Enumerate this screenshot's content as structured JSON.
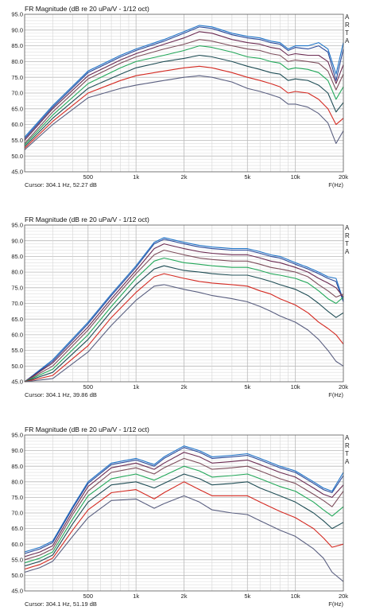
{
  "chart_data": [
    {
      "type": "line",
      "title": "FR Magnitude (dB re 20 uPa/V - 1/12 oct)",
      "brand": "ARTA",
      "xlabel": "F(Hz)",
      "cursor": "Cursor: 304.1 Hz, 52.27 dB",
      "x_scale": "log",
      "xlim": [
        200,
        20000
      ],
      "ylim": [
        45,
        95
      ],
      "x_ticks": [
        "500",
        "1k",
        "2k",
        "5k",
        "10k",
        "20k"
      ],
      "y_ticks": [
        "45.0",
        "50.0",
        "55.0",
        "60.0",
        "65.0",
        "70.0",
        "75.0",
        "80.0",
        "85.0",
        "90.0",
        "95.0"
      ],
      "grid": true,
      "x": [
        200,
        300,
        500,
        800,
        1000,
        1500,
        2000,
        2500,
        3000,
        4000,
        5000,
        6000,
        7000,
        8000,
        9000,
        10000,
        12000,
        14000,
        16000,
        18000,
        20000
      ],
      "series": [
        {
          "color": "#1e73c8",
          "values": [
            56,
            66,
            77,
            82,
            84,
            87,
            89.5,
            91.5,
            91,
            89,
            88,
            87.5,
            86.5,
            86,
            84,
            85,
            85,
            86,
            84,
            76,
            86
          ]
        },
        {
          "color": "#2b4a9a",
          "values": [
            55.5,
            65.5,
            76.5,
            81.5,
            83.5,
            86.5,
            89,
            91,
            90.5,
            88.5,
            87.5,
            87,
            86,
            85.5,
            83.5,
            84.5,
            84,
            85,
            83,
            74,
            84
          ]
        },
        {
          "color": "#6b2b52",
          "values": [
            55,
            65,
            75.5,
            80.5,
            82.5,
            85.5,
            87.5,
            89.5,
            89,
            87,
            86,
            85.5,
            84.5,
            84,
            82,
            82.5,
            82,
            82,
            80,
            73,
            79
          ]
        },
        {
          "color": "#7d4e5c",
          "values": [
            54,
            64,
            74.5,
            79.5,
            81.5,
            84,
            85.5,
            87,
            86.5,
            85,
            84,
            83.5,
            82.5,
            82,
            80,
            80.5,
            80,
            79.5,
            77,
            71,
            76
          ]
        },
        {
          "color": "#23a85a",
          "values": [
            53.5,
            63,
            73,
            78,
            80,
            82,
            83.5,
            85,
            84.5,
            83,
            81.5,
            81,
            80,
            79.5,
            77.5,
            78,
            77.5,
            76.5,
            74,
            68,
            72
          ]
        },
        {
          "color": "#1f4d55",
          "values": [
            53,
            62,
            71.5,
            76,
            78,
            80,
            81,
            82,
            81.5,
            80,
            78.5,
            77.5,
            76.5,
            76,
            74,
            74.5,
            74,
            72.5,
            70,
            64,
            67
          ]
        },
        {
          "color": "#d42a22",
          "values": [
            52.5,
            61,
            70,
            74,
            75.5,
            77,
            78,
            78.5,
            78,
            76.5,
            75,
            74,
            73,
            72,
            70,
            70.5,
            70,
            68,
            65,
            60,
            62
          ]
        },
        {
          "color": "#5a5f80",
          "values": [
            52,
            60,
            68.5,
            71.5,
            72.5,
            74,
            75,
            75.5,
            75,
            73.5,
            71.5,
            70.5,
            69.5,
            68.5,
            66.5,
            66.5,
            65.5,
            63.5,
            60.5,
            54,
            58
          ]
        }
      ]
    },
    {
      "type": "line",
      "title": "FR Magnitude (dB re 20 uPa/V - 1/12 oct)",
      "brand": "ARTA",
      "xlabel": "F(Hz)",
      "cursor": "Cursor: 304.1 Hz, 39.86 dB",
      "x_scale": "log",
      "xlim": [
        200,
        20000
      ],
      "ylim": [
        45,
        95
      ],
      "x_ticks": [
        "500",
        "1k",
        "2k",
        "5k",
        "10k",
        "20k"
      ],
      "y_ticks": [
        "45.0",
        "50.0",
        "55.0",
        "60.0",
        "65.0",
        "70.0",
        "75.0",
        "80.0",
        "85.0",
        "90.0",
        "95.0"
      ],
      "grid": true,
      "x": [
        200,
        300,
        500,
        700,
        1000,
        1300,
        1500,
        2000,
        2500,
        3000,
        4000,
        5000,
        6000,
        7000,
        8000,
        10000,
        12000,
        14000,
        16000,
        18000,
        20000
      ],
      "series": [
        {
          "color": "#1e73c8",
          "values": [
            45,
            52,
            64,
            73,
            82,
            89.5,
            91,
            89.5,
            88.5,
            88,
            87.5,
            87.5,
            86.5,
            85.5,
            85,
            83,
            81.5,
            80,
            78.5,
            78,
            71
          ]
        },
        {
          "color": "#2b4a9a",
          "values": [
            45,
            51.5,
            63.5,
            72.5,
            81.5,
            89,
            90.5,
            89,
            88,
            87.5,
            87,
            87,
            86,
            85,
            84.5,
            82.5,
            81,
            79.5,
            78,
            77,
            70.5
          ]
        },
        {
          "color": "#6b2b52",
          "values": [
            45,
            51,
            62.5,
            71.5,
            80.5,
            87.5,
            89,
            87.5,
            86.5,
            86,
            85.5,
            85.5,
            84.5,
            83.5,
            83,
            81.5,
            80,
            78,
            76.5,
            75,
            72
          ]
        },
        {
          "color": "#7d4e5c",
          "values": [
            45,
            50,
            61.5,
            70.5,
            79.5,
            85.5,
            87,
            85.5,
            84.5,
            84,
            83.5,
            83.5,
            82.5,
            81.5,
            81,
            80,
            78.5,
            76,
            74,
            72,
            73
          ]
        },
        {
          "color": "#23a85a",
          "values": [
            45,
            49,
            60,
            69,
            78,
            83.5,
            84.5,
            83,
            82.5,
            82,
            81.5,
            81.5,
            80.5,
            79.5,
            79,
            78,
            76.5,
            74,
            71.5,
            70,
            72
          ]
        },
        {
          "color": "#1f4d55",
          "values": [
            45,
            48,
            58.5,
            67.5,
            76,
            81,
            82,
            80.5,
            80,
            79.5,
            79,
            79,
            78,
            77,
            76,
            74.5,
            72.5,
            70,
            67.5,
            65.5,
            67
          ]
        },
        {
          "color": "#d42a22",
          "values": [
            45,
            47,
            56.5,
            65.5,
            73.5,
            78.5,
            79.5,
            78,
            77,
            76.5,
            76,
            75.5,
            74,
            73,
            71.5,
            69.5,
            67,
            64,
            62,
            60,
            57
          ]
        },
        {
          "color": "#5a5f80",
          "values": [
            45,
            46,
            54.5,
            63,
            71,
            75.5,
            76,
            74.5,
            73.5,
            72.5,
            71.5,
            70.5,
            69,
            67.5,
            66,
            64,
            61.5,
            58.5,
            55,
            51.5,
            50
          ]
        }
      ]
    },
    {
      "type": "line",
      "title": "FR Magnitude (dB re 20 uPa/V - 1/12 oct)",
      "brand": "ARTA",
      "xlabel": "F(Hz)",
      "cursor": "Cursor: 304.1 Hz, 51.19 dB",
      "x_scale": "log",
      "xlim": [
        200,
        20000
      ],
      "ylim": [
        45,
        95
      ],
      "x_ticks": [
        "500",
        "1k",
        "2k",
        "5k",
        "10k",
        "20k"
      ],
      "y_ticks": [
        "45.0",
        "50.0",
        "55.0",
        "60.0",
        "65.0",
        "70.0",
        "75.0",
        "80.0",
        "85.0",
        "90.0",
        "95.0"
      ],
      "grid": true,
      "x": [
        200,
        250,
        300,
        400,
        500,
        700,
        1000,
        1300,
        1500,
        2000,
        2500,
        3000,
        4000,
        5000,
        6000,
        8000,
        10000,
        13000,
        15000,
        17000,
        20000
      ],
      "series": [
        {
          "color": "#1e73c8",
          "values": [
            57.5,
            59,
            61,
            72,
            80,
            86,
            87.5,
            85.5,
            88,
            91.5,
            90,
            88,
            88.5,
            89,
            87.5,
            85,
            83.5,
            80,
            78,
            77,
            83
          ]
        },
        {
          "color": "#2b4a9a",
          "values": [
            57,
            58.5,
            60.5,
            71.5,
            79.5,
            85.5,
            87,
            85,
            87.5,
            91,
            89.5,
            87.5,
            88,
            88.5,
            87,
            84.5,
            83,
            79.5,
            77.5,
            76.5,
            82
          ]
        },
        {
          "color": "#6b2b52",
          "values": [
            56,
            57.5,
            59.5,
            70.5,
            78.5,
            84.5,
            86,
            84,
            86,
            89.5,
            88,
            86,
            86.5,
            87,
            85.5,
            83,
            81.5,
            78,
            76,
            75,
            79
          ]
        },
        {
          "color": "#7d4e5c",
          "values": [
            55,
            56.5,
            58.5,
            69.5,
            77,
            83,
            84.5,
            82.5,
            84.5,
            87.5,
            86,
            84,
            84.5,
            85,
            83.5,
            81,
            79.5,
            76,
            74,
            72,
            77
          ]
        },
        {
          "color": "#23a85a",
          "values": [
            54,
            55.5,
            57.5,
            68,
            75.5,
            81,
            82.5,
            80.5,
            82,
            85,
            83.5,
            81.5,
            82,
            82.5,
            81,
            78.5,
            77,
            73.5,
            71,
            69,
            72
          ]
        },
        {
          "color": "#1f4d55",
          "values": [
            53,
            54.5,
            56.5,
            66.5,
            73.5,
            79,
            80,
            78,
            79.5,
            82.5,
            81,
            79,
            79.5,
            80,
            78,
            75.5,
            73.5,
            70,
            67.5,
            65,
            67
          ]
        },
        {
          "color": "#d42a22",
          "values": [
            52,
            53.5,
            55.5,
            64.5,
            71,
            76.5,
            77.5,
            74.5,
            76.5,
            80,
            77.5,
            75.5,
            75.5,
            75.5,
            73.5,
            70.5,
            68.5,
            65,
            62,
            59,
            60
          ]
        },
        {
          "color": "#5a5f80",
          "values": [
            51,
            52.5,
            54.5,
            62.5,
            68.5,
            74,
            74.5,
            71.5,
            73,
            75.5,
            73.5,
            71,
            70,
            69.5,
            67.5,
            64.5,
            62.5,
            58.5,
            55.5,
            51,
            48
          ]
        }
      ]
    }
  ]
}
